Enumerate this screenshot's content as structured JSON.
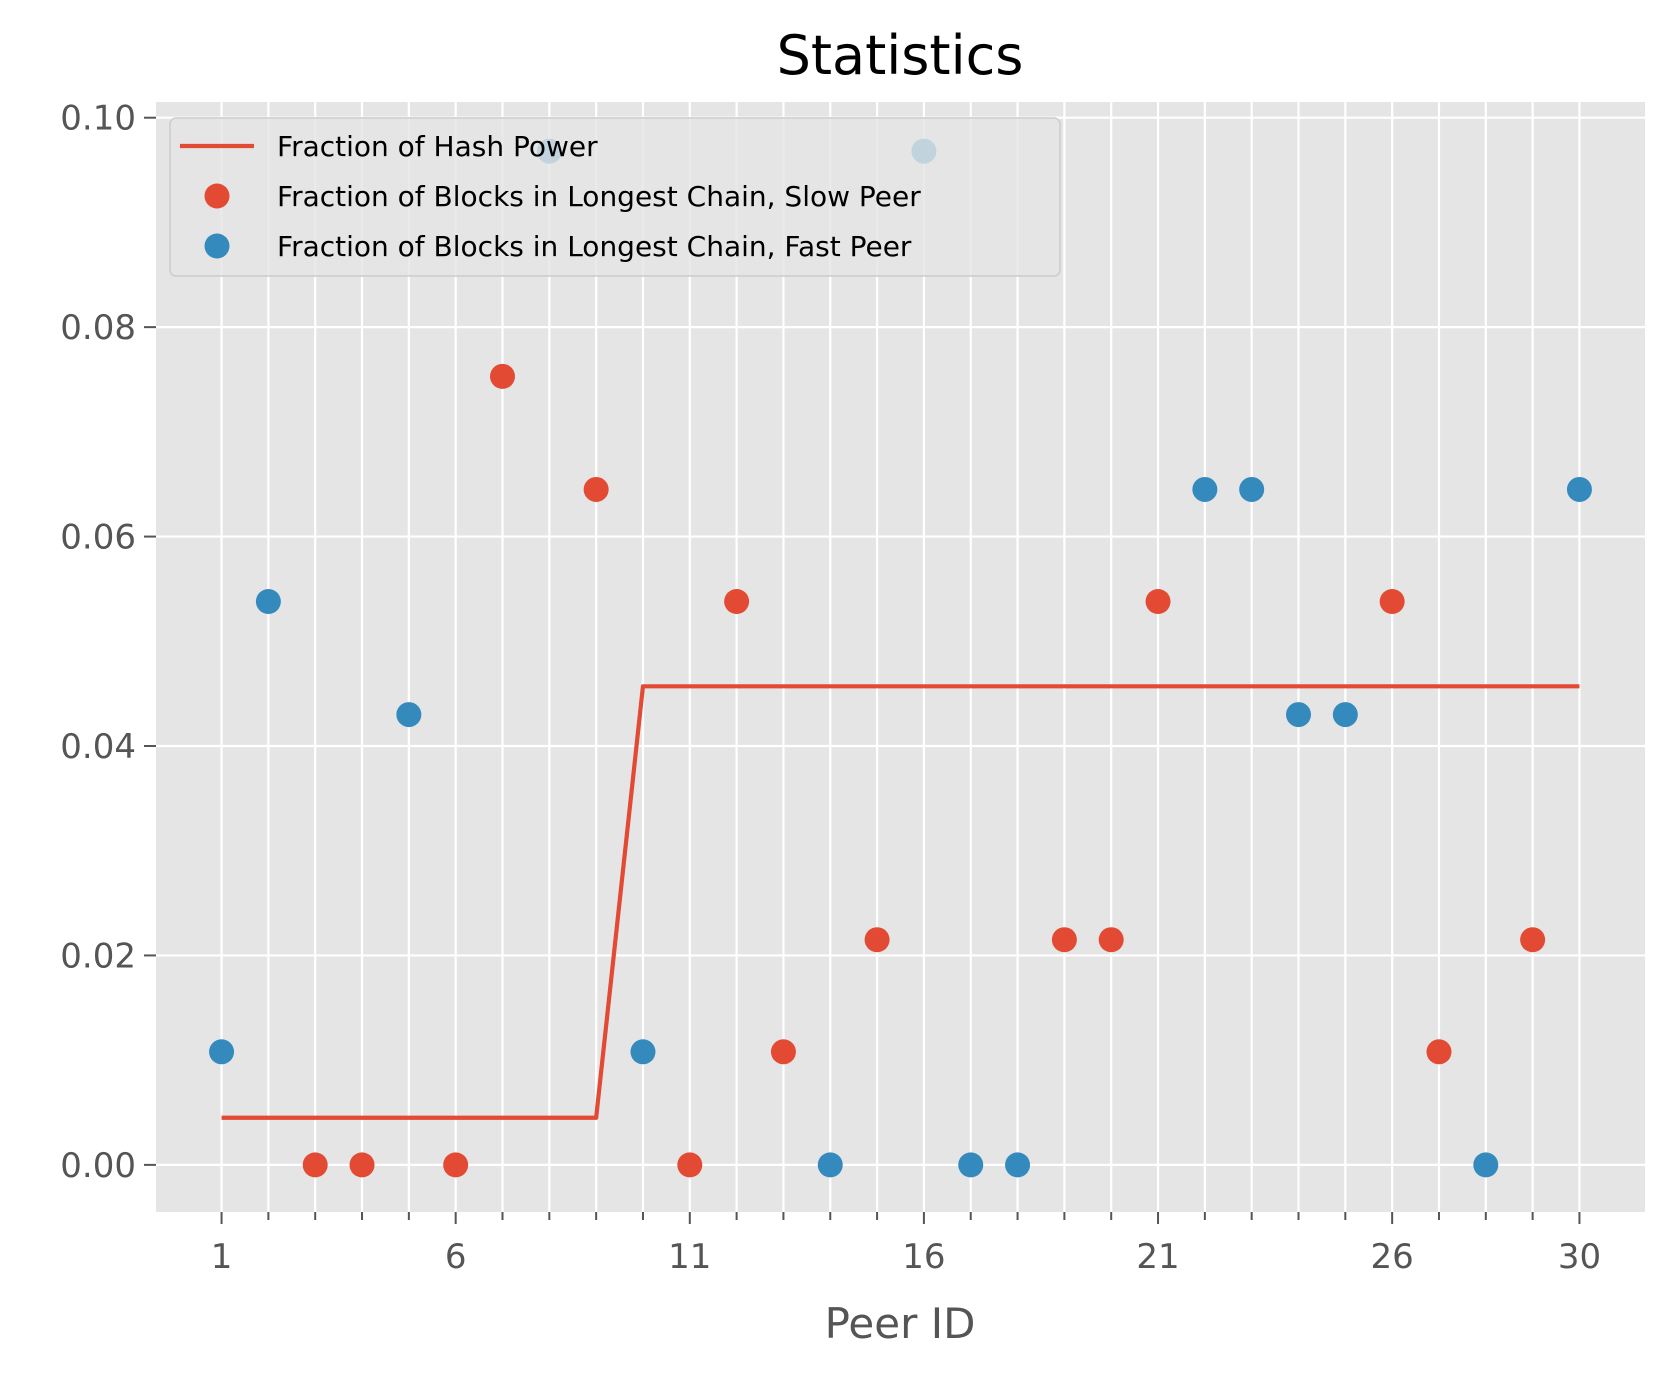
{
  "chart_data": {
    "type": "scatter",
    "title": "Statistics",
    "xlabel": "Peer ID",
    "ylabel": "",
    "xlim": [
      -0.4,
      31.4
    ],
    "ylim": [
      -0.0045,
      0.1015
    ],
    "xticks_major": [
      1,
      6,
      11,
      16,
      21,
      26,
      30
    ],
    "xticks_minor": [
      1,
      2,
      3,
      4,
      5,
      6,
      7,
      8,
      9,
      10,
      11,
      12,
      13,
      14,
      15,
      16,
      17,
      18,
      19,
      20,
      21,
      22,
      23,
      24,
      25,
      26,
      27,
      28,
      29,
      30
    ],
    "xtick_labels": [
      "1",
      "6",
      "11",
      "16",
      "21",
      "26",
      "30"
    ],
    "yticks": [
      0.0,
      0.02,
      0.04,
      0.06,
      0.08,
      0.1
    ],
    "ytick_labels": [
      "0.00",
      "0.02",
      "0.04",
      "0.06",
      "0.08",
      "0.10"
    ],
    "grid": true,
    "legend_position": "upper-left",
    "colors": {
      "background": "#e5e5e5",
      "grid": "#ffffff",
      "slow": "#e24a33",
      "fast": "#348abd",
      "hash": "#e24a33"
    },
    "series": [
      {
        "name": "Fraction of Hash Power",
        "kind": "line",
        "color": "#e24a33",
        "x": [
          1,
          2,
          3,
          4,
          5,
          6,
          7,
          8,
          9,
          10,
          11,
          12,
          13,
          14,
          15,
          16,
          17,
          18,
          19,
          20,
          21,
          22,
          23,
          24,
          25,
          26,
          27,
          28,
          29,
          30
        ],
        "y": [
          0.0045,
          0.0045,
          0.0045,
          0.0045,
          0.0045,
          0.0045,
          0.0045,
          0.0045,
          0.0045,
          0.0457,
          0.0457,
          0.0457,
          0.0457,
          0.0457,
          0.0457,
          0.0457,
          0.0457,
          0.0457,
          0.0457,
          0.0457,
          0.0457,
          0.0457,
          0.0457,
          0.0457,
          0.0457,
          0.0457,
          0.0457,
          0.0457,
          0.0457,
          0.0457
        ]
      },
      {
        "name": "Fraction of Blocks in Longest Chain, Slow Peer",
        "kind": "scatter",
        "color": "#e24a33",
        "x": [
          3,
          4,
          6,
          7,
          9,
          11,
          12,
          13,
          15,
          19,
          20,
          21,
          26,
          27,
          29
        ],
        "y": [
          0.0,
          0.0,
          0.0,
          0.0753,
          0.0645,
          0.0,
          0.0538,
          0.0108,
          0.0215,
          0.0215,
          0.0215,
          0.0538,
          0.0538,
          0.0108,
          0.0215
        ]
      },
      {
        "name": "Fraction of Blocks in Longest Chain, Fast Peer",
        "kind": "scatter",
        "color": "#348abd",
        "x": [
          1,
          2,
          5,
          8,
          10,
          14,
          16,
          17,
          18,
          22,
          23,
          24,
          25,
          28,
          30
        ],
        "y": [
          0.0108,
          0.0538,
          0.043,
          0.0968,
          0.0108,
          0.0,
          0.0968,
          0.0,
          0.0,
          0.0645,
          0.0645,
          0.043,
          0.043,
          0.0,
          0.0645
        ]
      }
    ]
  }
}
